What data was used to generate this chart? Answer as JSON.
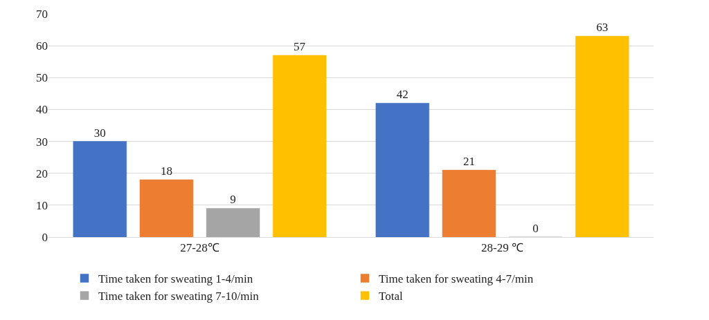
{
  "chart_data": {
    "type": "bar",
    "categories": [
      "27-28℃",
      "28-29 ℃"
    ],
    "series": [
      {
        "name": "Time taken for sweating 1-4/min",
        "color": "#4472c4",
        "values": [
          30,
          42
        ]
      },
      {
        "name": "Time taken for sweating 4-7/min",
        "color": "#ed7d31",
        "values": [
          18,
          21
        ]
      },
      {
        "name": "Time taken for sweating 7-10/min",
        "color": "#a5a5a5",
        "values": [
          9,
          0
        ]
      },
      {
        "name": "Total",
        "color": "#ffc000",
        "values": [
          57,
          63
        ]
      }
    ],
    "ylim": [
      0,
      70
    ],
    "yticks": [
      0,
      10,
      20,
      30,
      40,
      50,
      60,
      70
    ],
    "grid": "y",
    "legend": "bottom",
    "data_labels": true
  }
}
